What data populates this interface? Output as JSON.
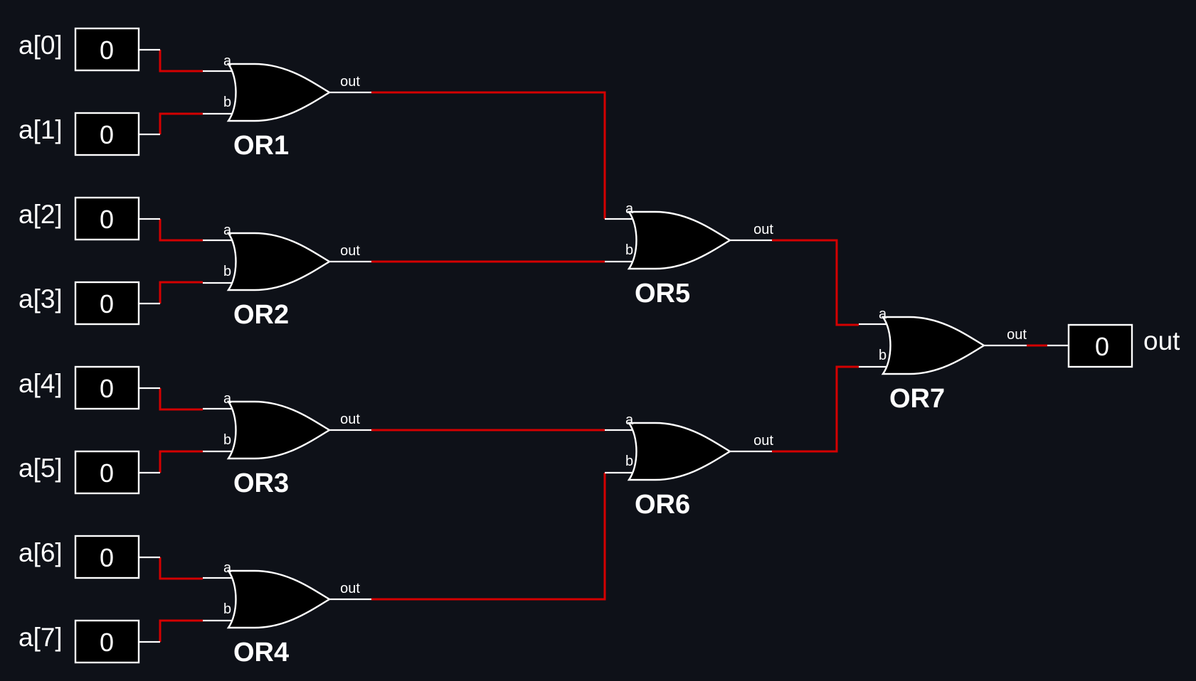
{
  "diagram": {
    "inputs": [
      {
        "label": "a[0]",
        "value": "0"
      },
      {
        "label": "a[1]",
        "value": "0"
      },
      {
        "label": "a[2]",
        "value": "0"
      },
      {
        "label": "a[3]",
        "value": "0"
      },
      {
        "label": "a[4]",
        "value": "0"
      },
      {
        "label": "a[5]",
        "value": "0"
      },
      {
        "label": "a[6]",
        "value": "0"
      },
      {
        "label": "a[7]",
        "value": "0"
      }
    ],
    "gates": [
      {
        "label": "OR1",
        "pin_a": "a",
        "pin_b": "b",
        "pin_out": "out"
      },
      {
        "label": "OR2",
        "pin_a": "a",
        "pin_b": "b",
        "pin_out": "out"
      },
      {
        "label": "OR3",
        "pin_a": "a",
        "pin_b": "b",
        "pin_out": "out"
      },
      {
        "label": "OR4",
        "pin_a": "a",
        "pin_b": "b",
        "pin_out": "out"
      },
      {
        "label": "OR5",
        "pin_a": "a",
        "pin_b": "b",
        "pin_out": "out"
      },
      {
        "label": "OR6",
        "pin_a": "a",
        "pin_b": "b",
        "pin_out": "out"
      },
      {
        "label": "OR7",
        "pin_a": "a",
        "pin_b": "b",
        "pin_out": "out"
      }
    ],
    "output": {
      "label": "out",
      "value": "0"
    },
    "colors": {
      "background": "#0e1118",
      "active_wire": "#d40000",
      "pin_wire": "#ffffff",
      "gate_fill": "#000000"
    }
  }
}
